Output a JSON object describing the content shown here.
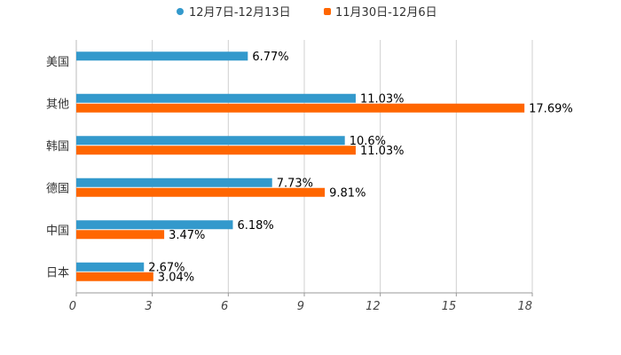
{
  "chart_data": {
    "type": "bar",
    "orientation": "horizontal",
    "categories": [
      "美国",
      "其他",
      "韩国",
      "德国",
      "中国",
      "日本"
    ],
    "series": [
      {
        "name": "12月7日-12月13日",
        "color": "#3399cc",
        "values": [
          6.77,
          11.03,
          10.6,
          7.73,
          6.18,
          2.67
        ],
        "labels": [
          "6.77%",
          "11.03%",
          "10.6%",
          "7.73%",
          "6.18%",
          "2.67%"
        ]
      },
      {
        "name": "11月30日-12月6日",
        "color": "#ff6600",
        "values": [
          null,
          17.69,
          11.03,
          9.81,
          3.47,
          3.04
        ],
        "labels": [
          null,
          "17.69%",
          "11.03%",
          "9.81%",
          "3.47%",
          "3.04%"
        ]
      }
    ],
    "xlim": [
      0,
      18
    ],
    "xticks": [
      0,
      3,
      6,
      9,
      12,
      15,
      18
    ],
    "xtick_labels": [
      "0",
      "3",
      "6",
      "9",
      "12",
      "15",
      "18"
    ],
    "grid": true,
    "legend_position": "top-center"
  }
}
